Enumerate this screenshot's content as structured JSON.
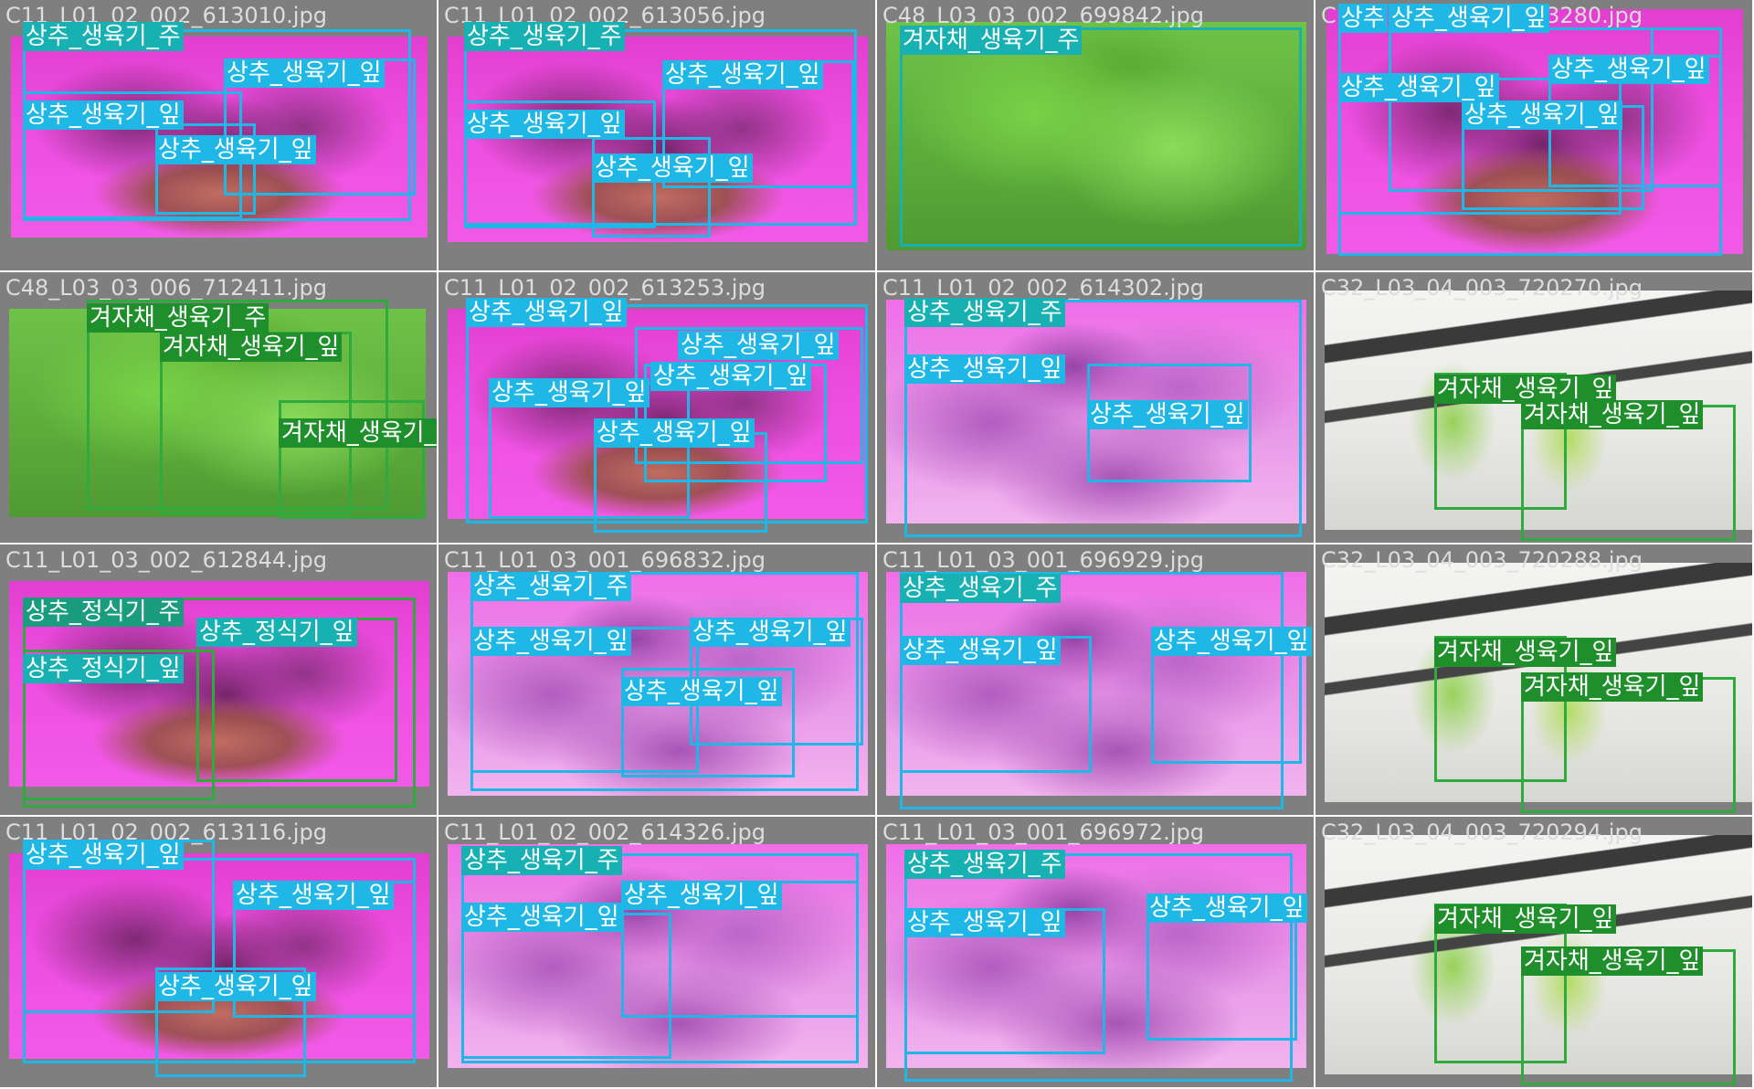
{
  "colors": {
    "leaf": "#1fb8e6",
    "stem": "#17b1b3",
    "stem_dark": "#1a9c7e",
    "mustard": "#1f8f2b",
    "mustard_box": "#2faa3c"
  },
  "cells": [
    {
      "filename": "C11_L01_02_002_613010.jpg",
      "theme": "purple",
      "labels": [
        "상추_생육기_주",
        "상추_생육기_잎",
        "상추_생육기_잎",
        "상추_생육기_잎"
      ]
    },
    {
      "filename": "C11_L01_02_002_613056.jpg",
      "theme": "purple",
      "labels": [
        "상추_생육기_주",
        "상추_생육기_잎",
        "상추_생육기_잎",
        "상추_생육기_잎"
      ]
    },
    {
      "filename": "C48_L03_03_002_699842.jpg",
      "theme": "green",
      "labels": [
        "겨자채_생육기_주"
      ]
    },
    {
      "filename": "C11_L01_02_002_613280.jpg",
      "theme": "purple",
      "labels": [
        "상추",
        "상추_생육기_잎",
        "상추_생육기_잎",
        "상추_생육기_잎",
        "상추_생육기_잎"
      ]
    },
    {
      "filename": "C48_L03_03_006_712411.jpg",
      "theme": "green",
      "labels": [
        "겨자채_생육기_주",
        "겨자채_생육기_잎",
        "겨자채_생육기_잎"
      ]
    },
    {
      "filename": "C11_L01_02_002_613253.jpg",
      "theme": "purple",
      "labels": [
        "상추_생육기_잎",
        "상추_생육기_잎",
        "상추_생육기_잎",
        "상추_생육기_잎",
        "상추_생육기_잎"
      ]
    },
    {
      "filename": "C11_L01_02_002_614302.jpg",
      "theme": "purple2",
      "labels": [
        "상추_생육기_주",
        "상추_생육기_잎",
        "상추_생육기_잎"
      ]
    },
    {
      "filename": "C32_L03_04_003_720270.jpg",
      "theme": "white",
      "labels": [
        "겨자채_생육기_잎",
        "겨자채_생육기_잎"
      ]
    },
    {
      "filename": "C11_L01_03_002_612844.jpg",
      "theme": "purple",
      "labels": [
        "상추_정식기_주",
        "상추_정식기_잎",
        "상추_정식기_잎"
      ]
    },
    {
      "filename": "C11_L01_03_001_696832.jpg",
      "theme": "purple2",
      "labels": [
        "상추_생육기_주",
        "상추_생육기_잎",
        "상추_생육기_잎",
        "상추_생육기_잎"
      ]
    },
    {
      "filename": "C11_L01_03_001_696929.jpg",
      "theme": "purple2",
      "labels": [
        "상추_생육기_주",
        "상추_생육기_잎",
        "상추_생육기_잎"
      ]
    },
    {
      "filename": "C32_L03_04_003_720288.jpg",
      "theme": "white",
      "labels": [
        "겨자채_생육기_잎",
        "겨자채_생육기_잎"
      ]
    },
    {
      "filename": "C11_L01_02_002_613116.jpg",
      "theme": "purple",
      "labels": [
        "상추_생육기_잎",
        "상추_생육기_잎",
        "상추_생육기_잎"
      ]
    },
    {
      "filename": "C11_L01_02_002_614326.jpg",
      "theme": "purple2",
      "labels": [
        "상추_생육기_주",
        "상추_생육기_잎",
        "상추_생육기_잎"
      ]
    },
    {
      "filename": "C11_L01_03_001_696972.jpg",
      "theme": "purple2",
      "labels": [
        "상추_생육기_주",
        "상추_생육기_잎",
        "상추_생육기_잎"
      ]
    },
    {
      "filename": "C32_L03_04_003_720294.jpg",
      "theme": "white",
      "labels": [
        "겨자채_생육기_잎",
        "겨자채_생육기_잎"
      ]
    }
  ]
}
